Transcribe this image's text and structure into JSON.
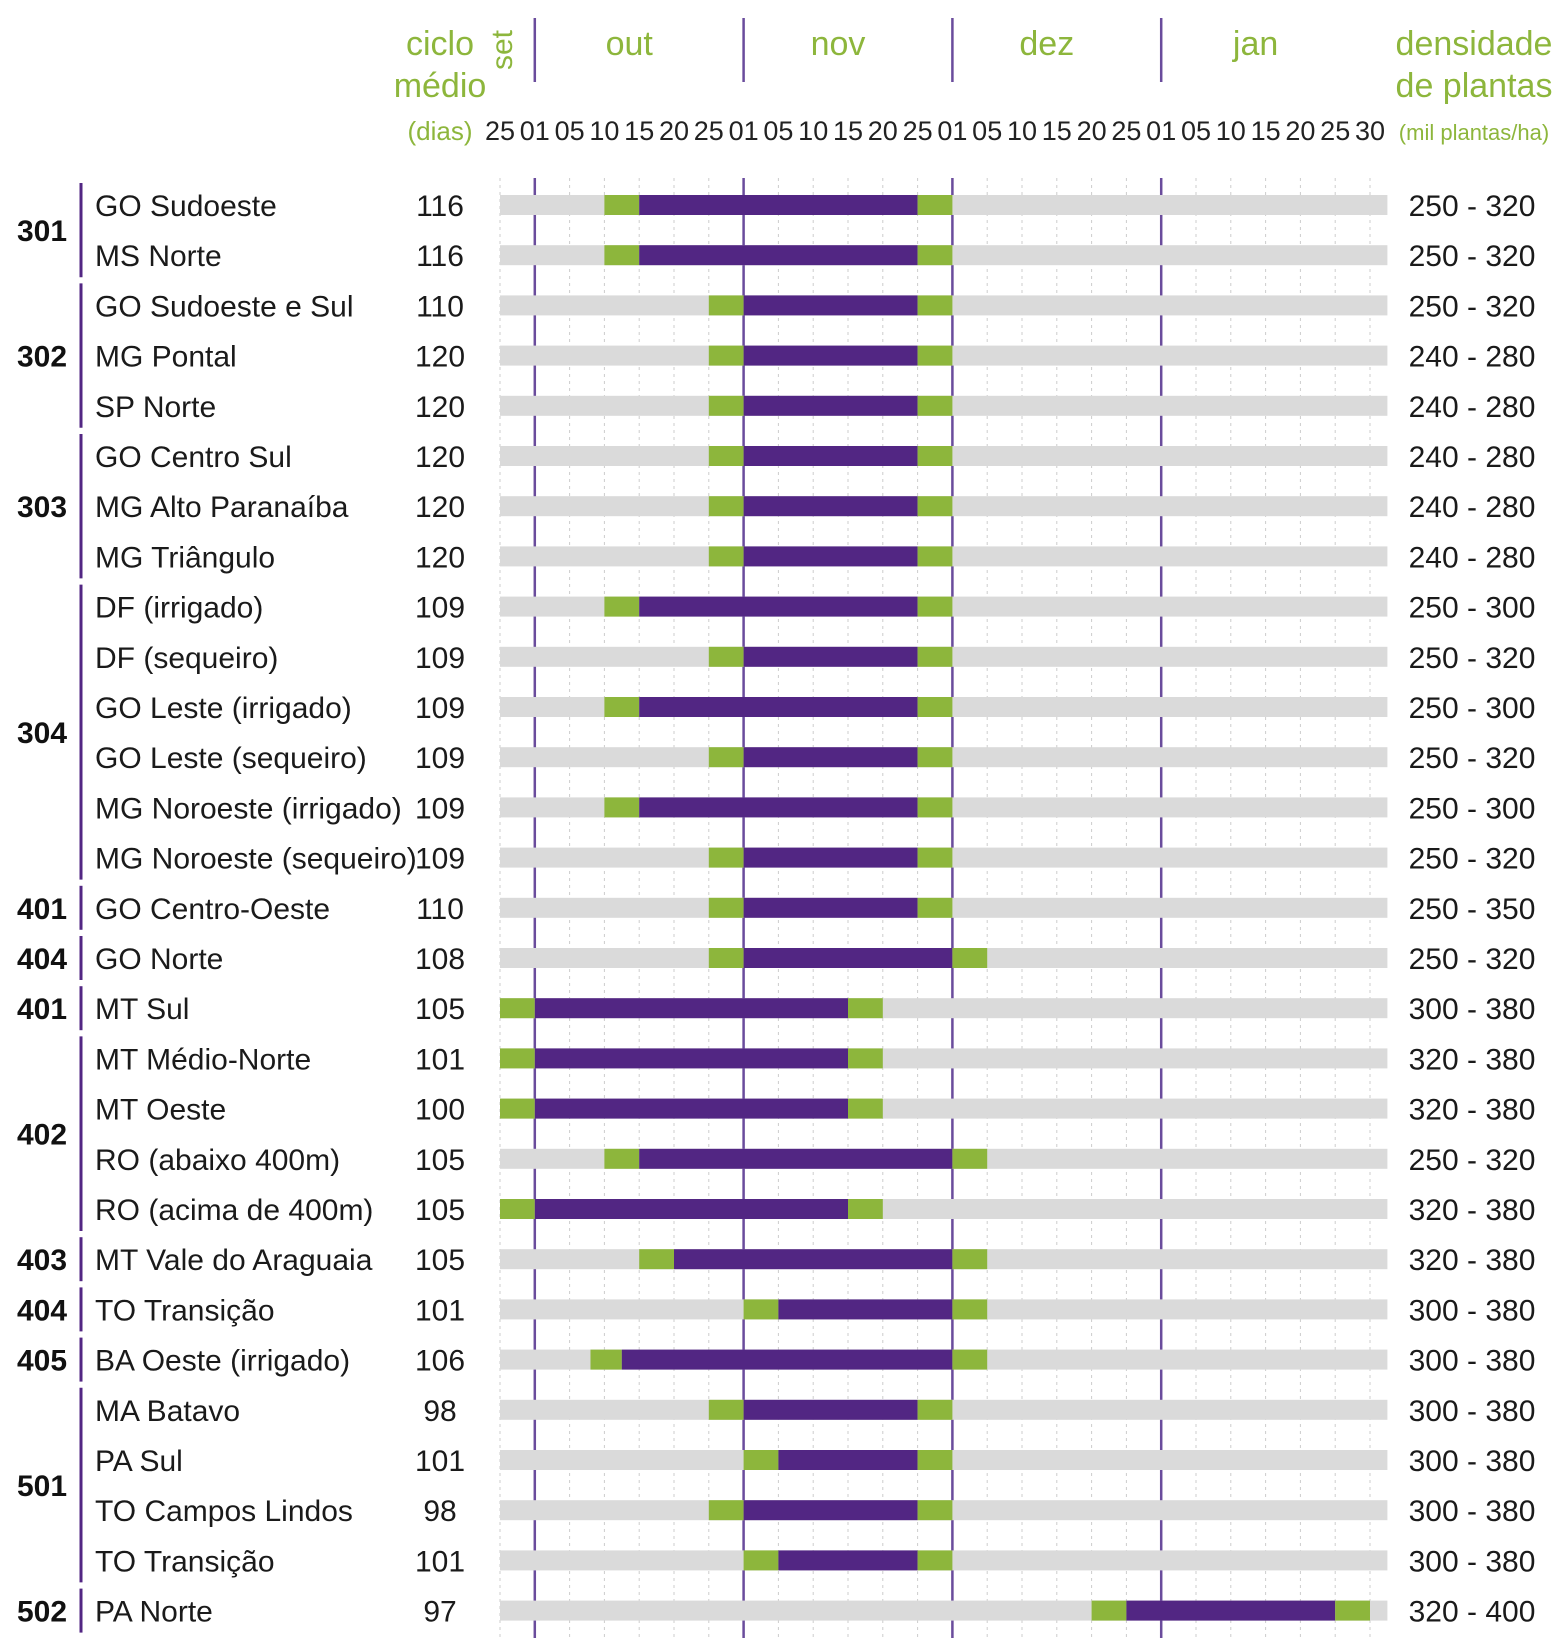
{
  "chart_data": {
    "type": "gantt",
    "headers": {
      "ciclo_line1": "ciclo",
      "ciclo_line2": "médio",
      "ciclo_unit": "(dias)",
      "densidade_line1": "densidade",
      "densidade_line2": "de plantas",
      "densidade_unit": "(mil plantas/ha)"
    },
    "months": [
      "set",
      "out",
      "nov",
      "dez",
      "jan"
    ],
    "ticks": [
      "25",
      "01",
      "05",
      "10",
      "15",
      "20",
      "25",
      "01",
      "05",
      "10",
      "15",
      "20",
      "25",
      "01",
      "05",
      "10",
      "15",
      "20",
      "25",
      "01",
      "05",
      "10",
      "15",
      "20",
      "25",
      "30"
    ],
    "colors": {
      "accent_green": "#8DB63C",
      "bar_purple": "#522683",
      "track_gray": "#DADADA",
      "separator_purple": "#6A4C9C",
      "grid_dashed": "#CCCCCC"
    },
    "rows": [
      {
        "group": "301",
        "region": "GO Sudoeste",
        "ciclo": "116",
        "densidade": "250 - 320",
        "green_start": 3,
        "purple_start": 4,
        "purple_end": 12,
        "green_end": 13
      },
      {
        "group": "301",
        "region": "MS Norte",
        "ciclo": "116",
        "densidade": "250 - 320",
        "green_start": 3,
        "purple_start": 4,
        "purple_end": 12,
        "green_end": 13
      },
      {
        "group": "302",
        "region": "GO Sudoeste e Sul",
        "ciclo": "110",
        "densidade": "250 - 320",
        "green_start": 6,
        "purple_start": 7,
        "purple_end": 12,
        "green_end": 13
      },
      {
        "group": "302",
        "region": "MG Pontal",
        "ciclo": "120",
        "densidade": "240 - 280",
        "green_start": 6,
        "purple_start": 7,
        "purple_end": 12,
        "green_end": 13
      },
      {
        "group": "302",
        "region": "SP Norte",
        "ciclo": "120",
        "densidade": "240 - 280",
        "green_start": 6,
        "purple_start": 7,
        "purple_end": 12,
        "green_end": 13
      },
      {
        "group": "303",
        "region": "GO Centro Sul",
        "ciclo": "120",
        "densidade": "240 - 280",
        "green_start": 6,
        "purple_start": 7,
        "purple_end": 12,
        "green_end": 13
      },
      {
        "group": "303",
        "region": "MG Alto Paranaíba",
        "ciclo": "120",
        "densidade": "240 - 280",
        "green_start": 6,
        "purple_start": 7,
        "purple_end": 12,
        "green_end": 13
      },
      {
        "group": "303",
        "region": "MG Triângulo",
        "ciclo": "120",
        "densidade": "240 - 280",
        "green_start": 6,
        "purple_start": 7,
        "purple_end": 12,
        "green_end": 13
      },
      {
        "group": "304",
        "region": "DF (irrigado)",
        "ciclo": "109",
        "densidade": "250 - 300",
        "green_start": 3,
        "purple_start": 4,
        "purple_end": 12,
        "green_end": 13
      },
      {
        "group": "304",
        "region": "DF (sequeiro)",
        "ciclo": "109",
        "densidade": "250 - 320",
        "green_start": 6,
        "purple_start": 7,
        "purple_end": 12,
        "green_end": 13
      },
      {
        "group": "304",
        "region": "GO Leste (irrigado)",
        "ciclo": "109",
        "densidade": "250 - 300",
        "green_start": 3,
        "purple_start": 4,
        "purple_end": 12,
        "green_end": 13
      },
      {
        "group": "304",
        "region": "GO Leste (sequeiro)",
        "ciclo": "109",
        "densidade": "250 - 320",
        "green_start": 6,
        "purple_start": 7,
        "purple_end": 12,
        "green_end": 13
      },
      {
        "group": "304",
        "region": "MG Noroeste (irrigado)",
        "ciclo": "109",
        "densidade": "250 - 300",
        "green_start": 3,
        "purple_start": 4,
        "purple_end": 12,
        "green_end": 13
      },
      {
        "group": "304",
        "region": "MG Noroeste (sequeiro)",
        "ciclo": "109",
        "densidade": "250 - 320",
        "green_start": 6,
        "purple_start": 7,
        "purple_end": 12,
        "green_end": 13
      },
      {
        "group": "401",
        "region": "GO Centro-Oeste",
        "ciclo": "110",
        "densidade": "250 - 350",
        "green_start": 6,
        "purple_start": 7,
        "purple_end": 12,
        "green_end": 13
      },
      {
        "group": "404",
        "region": "GO Norte",
        "ciclo": "108",
        "densidade": "250 - 320",
        "green_start": 6,
        "purple_start": 7,
        "purple_end": 13,
        "green_end": 14
      },
      {
        "group": "401",
        "region": "MT Sul",
        "ciclo": "105",
        "densidade": "300 - 380",
        "green_start": 0,
        "purple_start": 1,
        "purple_end": 10,
        "green_end": 11
      },
      {
        "group": "402",
        "region": "MT Médio-Norte",
        "ciclo": "101",
        "densidade": "320 - 380",
        "green_start": 0,
        "purple_start": 1,
        "purple_end": 10,
        "green_end": 11
      },
      {
        "group": "402",
        "region": "MT Oeste",
        "ciclo": "100",
        "densidade": "320 - 380",
        "green_start": 0,
        "purple_start": 1,
        "purple_end": 10,
        "green_end": 11
      },
      {
        "group": "402",
        "region": "RO (abaixo 400m)",
        "ciclo": "105",
        "densidade": "250 - 320",
        "green_start": 3,
        "purple_start": 4,
        "purple_end": 13,
        "green_end": 14
      },
      {
        "group": "402",
        "region": "RO (acima de 400m)",
        "ciclo": "105",
        "densidade": "320 - 380",
        "green_start": 0,
        "purple_start": 1,
        "purple_end": 10,
        "green_end": 11
      },
      {
        "group": "403",
        "region": "MT Vale do Araguaia",
        "ciclo": "105",
        "densidade": "320 - 380",
        "green_start": 4,
        "purple_start": 5,
        "purple_end": 13,
        "green_end": 14
      },
      {
        "group": "404",
        "region": "TO Transição",
        "ciclo": "101",
        "densidade": "300 - 380",
        "green_start": 7,
        "purple_start": 8,
        "purple_end": 13,
        "green_end": 14
      },
      {
        "group": "405",
        "region": "BA Oeste (irrigado)",
        "ciclo": "106",
        "densidade": "300 - 380",
        "green_start": 2.6,
        "purple_start": 3.5,
        "purple_end": 13,
        "green_end": 14
      },
      {
        "group": "501",
        "region": "MA Batavo",
        "ciclo": "98",
        "densidade": "300 - 380",
        "green_start": 6,
        "purple_start": 7,
        "purple_end": 12,
        "green_end": 13
      },
      {
        "group": "501",
        "region": "PA Sul",
        "ciclo": "101",
        "densidade": "300 - 380",
        "green_start": 7,
        "purple_start": 8,
        "purple_end": 12,
        "green_end": 13
      },
      {
        "group": "501",
        "region": "TO Campos Lindos",
        "ciclo": "98",
        "densidade": "300 - 380",
        "green_start": 6,
        "purple_start": 7,
        "purple_end": 12,
        "green_end": 13
      },
      {
        "group": "501",
        "region": "TO Transição",
        "ciclo": "101",
        "densidade": "300 - 380",
        "green_start": 7,
        "purple_start": 8,
        "purple_end": 12,
        "green_end": 13
      },
      {
        "group": "502",
        "region": "PA Norte",
        "ciclo": "97",
        "densidade": "320 - 400",
        "green_start": 17,
        "purple_start": 18,
        "purple_end": 24,
        "green_end": 25
      }
    ],
    "groups": [
      {
        "label": "301",
        "first": 0,
        "last": 1
      },
      {
        "label": "302",
        "first": 2,
        "last": 4
      },
      {
        "label": "303",
        "first": 5,
        "last": 7
      },
      {
        "label": "304",
        "first": 8,
        "last": 13
      },
      {
        "label": "401",
        "first": 14,
        "last": 14
      },
      {
        "label": "404",
        "first": 15,
        "last": 15
      },
      {
        "label": "401",
        "first": 16,
        "last": 16
      },
      {
        "label": "402",
        "first": 17,
        "last": 20
      },
      {
        "label": "403",
        "first": 21,
        "last": 21
      },
      {
        "label": "404",
        "first": 22,
        "last": 22
      },
      {
        "label": "405",
        "first": 23,
        "last": 23
      },
      {
        "label": "501",
        "first": 24,
        "last": 27
      },
      {
        "label": "502",
        "first": 28,
        "last": 28
      }
    ]
  }
}
